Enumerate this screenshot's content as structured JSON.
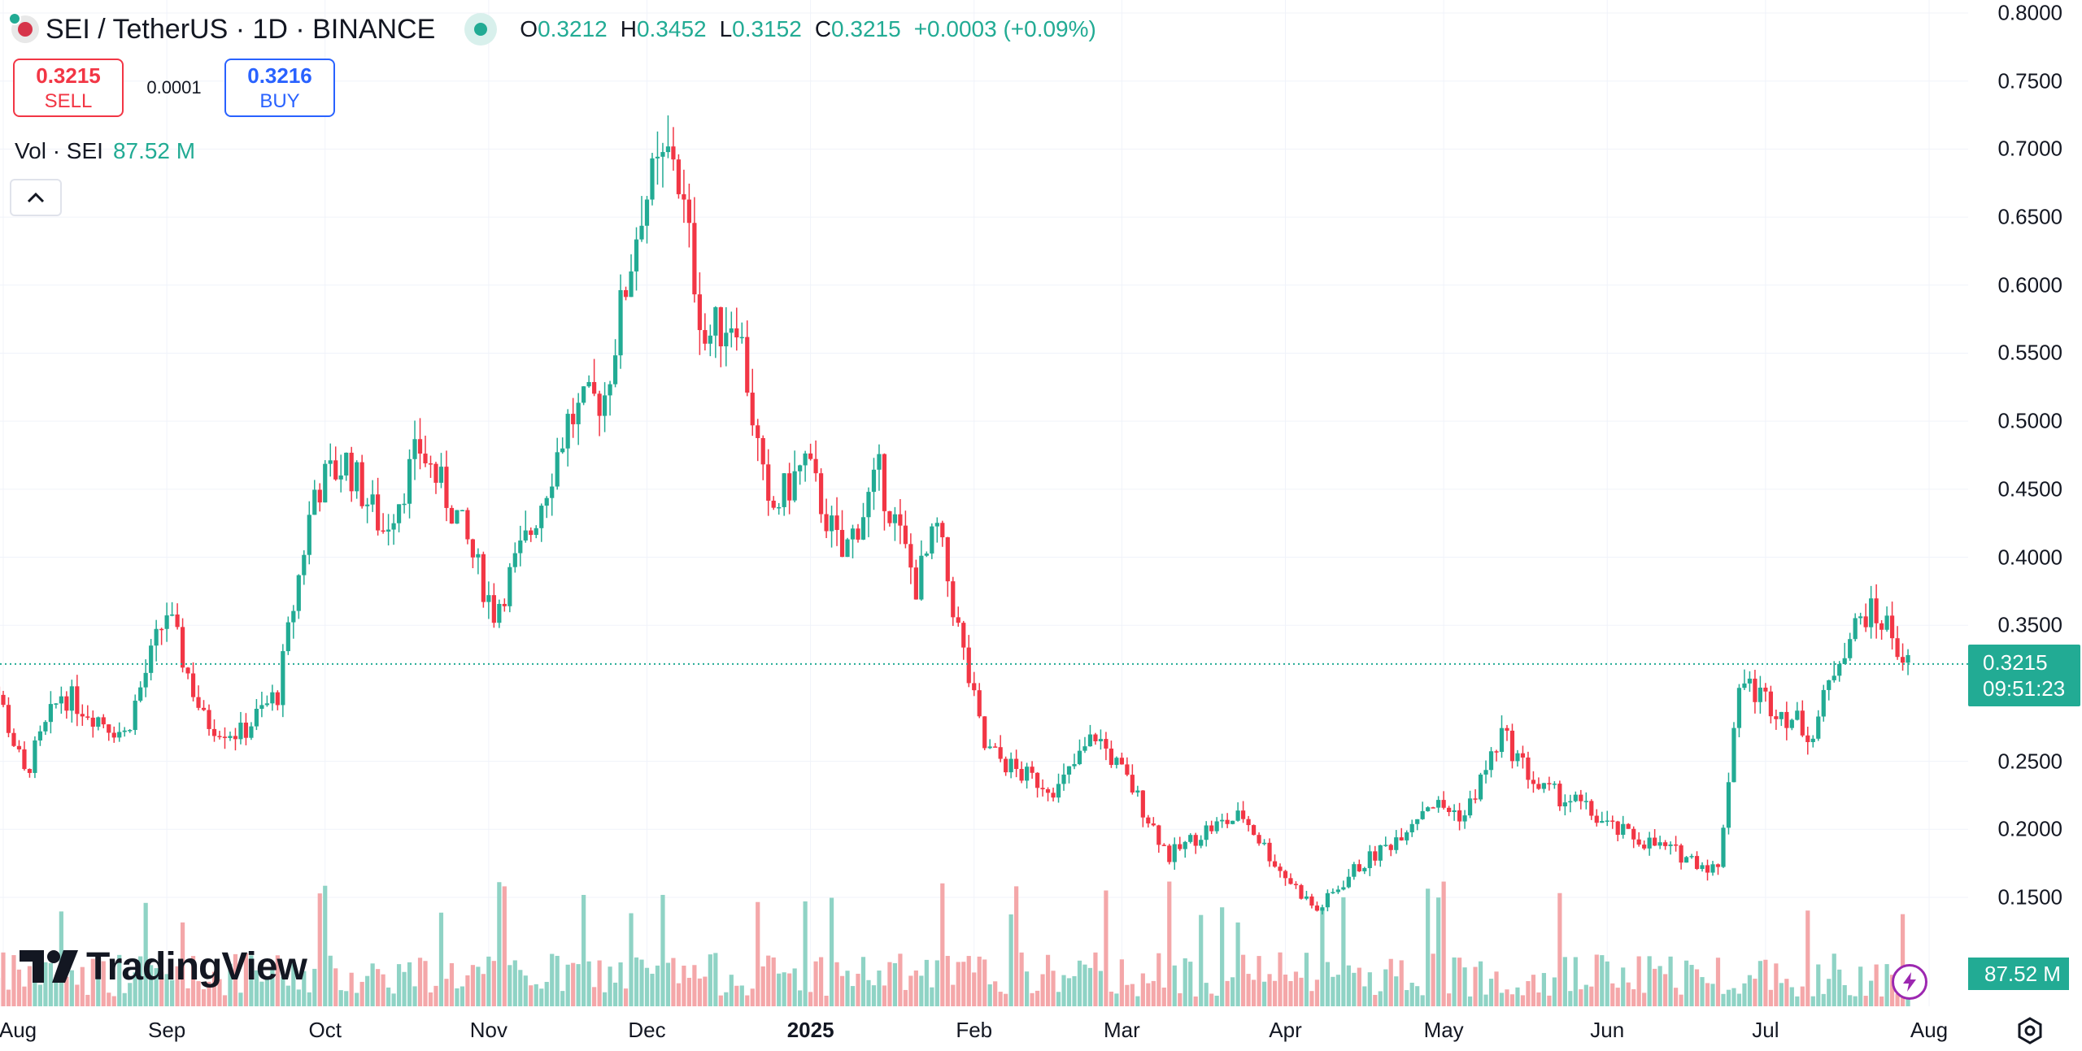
{
  "header": {
    "symbol": "SEI / TetherUS · 1D · BINANCE",
    "ohlc": [
      {
        "k": "O",
        "v": "0.3212"
      },
      {
        "k": "H",
        "v": "0.3452"
      },
      {
        "k": "L",
        "v": "0.3152"
      },
      {
        "k": "C",
        "v": "0.3215"
      }
    ],
    "change": "+0.0003 (+0.09%)"
  },
  "trade": {
    "sell_price": "0.3215",
    "sell_label": "SELL",
    "spread": "0.0001",
    "buy_price": "0.3216",
    "buy_label": "BUY"
  },
  "volume_legend": {
    "label": "Vol · SEI",
    "value": "87.52 M"
  },
  "price_tag": {
    "price": "0.3215",
    "countdown": "09:51:23"
  },
  "volume_tag": "87.52 M",
  "brand": "TradingView",
  "colors": {
    "up": "#22ab94",
    "down": "#f23645",
    "up_volume": "#8fd3c5",
    "down_volume": "#f4a7a9",
    "grid": "#f0f3fa"
  },
  "chart_data": {
    "type": "candlestick",
    "y_ticks": [
      "0.8000",
      "0.7500",
      "0.7000",
      "0.6500",
      "0.6000",
      "0.5500",
      "0.5000",
      "0.4500",
      "0.4000",
      "0.3500",
      "0.2500",
      "0.2000",
      "0.1500"
    ],
    "x_ticks": [
      {
        "label": "Aug",
        "bold": false
      },
      {
        "label": "Sep",
        "bold": false
      },
      {
        "label": "Oct",
        "bold": false
      },
      {
        "label": "Nov",
        "bold": false
      },
      {
        "label": "Dec",
        "bold": false
      },
      {
        "label": "2025",
        "bold": true
      },
      {
        "label": "Feb",
        "bold": false
      },
      {
        "label": "Mar",
        "bold": false
      },
      {
        "label": "Apr",
        "bold": false
      },
      {
        "label": "May",
        "bold": false
      },
      {
        "label": "Jun",
        "bold": false
      },
      {
        "label": "Jul",
        "bold": false
      },
      {
        "label": "Aug",
        "bold": false
      }
    ],
    "ylim": [
      0.12,
      0.8
    ],
    "last_price": 0.3215,
    "approx_close_path": [
      [
        "2024-07-26",
        0.36
      ],
      [
        "2024-08-05",
        0.24
      ],
      [
        "2024-08-12",
        0.3
      ],
      [
        "2024-08-24",
        0.27
      ],
      [
        "2024-09-01",
        0.36
      ],
      [
        "2024-09-08",
        0.28
      ],
      [
        "2024-09-15",
        0.27
      ],
      [
        "2024-09-22",
        0.3
      ],
      [
        "2024-09-29",
        0.45
      ],
      [
        "2024-10-05",
        0.47
      ],
      [
        "2024-10-12",
        0.42
      ],
      [
        "2024-10-19",
        0.48
      ],
      [
        "2024-10-26",
        0.43
      ],
      [
        "2024-11-02",
        0.36
      ],
      [
        "2024-11-09",
        0.42
      ],
      [
        "2024-11-16",
        0.5
      ],
      [
        "2024-11-23",
        0.52
      ],
      [
        "2024-11-30",
        0.66
      ],
      [
        "2024-12-06",
        0.7
      ],
      [
        "2024-12-12",
        0.56
      ],
      [
        "2024-12-18",
        0.58
      ],
      [
        "2024-12-24",
        0.43
      ],
      [
        "2024-12-31",
        0.47
      ],
      [
        "2025-01-07",
        0.4
      ],
      [
        "2025-01-14",
        0.46
      ],
      [
        "2025-01-21",
        0.38
      ],
      [
        "2025-01-25",
        0.42
      ],
      [
        "2025-01-31",
        0.31
      ],
      [
        "2025-02-03",
        0.26
      ],
      [
        "2025-02-10",
        0.24
      ],
      [
        "2025-02-17",
        0.23
      ],
      [
        "2025-02-24",
        0.27
      ],
      [
        "2025-03-03",
        0.23
      ],
      [
        "2025-03-10",
        0.18
      ],
      [
        "2025-03-17",
        0.2
      ],
      [
        "2025-03-24",
        0.21
      ],
      [
        "2025-03-31",
        0.17
      ],
      [
        "2025-04-07",
        0.14
      ],
      [
        "2025-04-14",
        0.17
      ],
      [
        "2025-04-21",
        0.19
      ],
      [
        "2025-04-28",
        0.22
      ],
      [
        "2025-05-05",
        0.21
      ],
      [
        "2025-05-12",
        0.27
      ],
      [
        "2025-05-19",
        0.23
      ],
      [
        "2025-05-26",
        0.22
      ],
      [
        "2025-06-02",
        0.2
      ],
      [
        "2025-06-09",
        0.19
      ],
      [
        "2025-06-16",
        0.18
      ],
      [
        "2025-06-22",
        0.17
      ],
      [
        "2025-06-26",
        0.31
      ],
      [
        "2025-07-03",
        0.29
      ],
      [
        "2025-07-10",
        0.27
      ],
      [
        "2025-07-15",
        0.33
      ],
      [
        "2025-07-20",
        0.36
      ],
      [
        "2025-07-24",
        0.35
      ],
      [
        "2025-07-28",
        0.32
      ]
    ]
  }
}
